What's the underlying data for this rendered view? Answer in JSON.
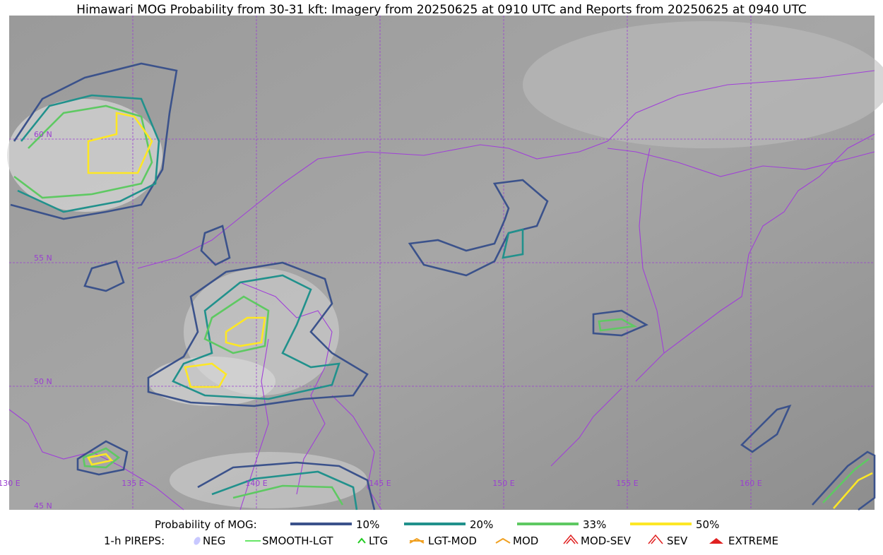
{
  "title": "Himawari MOG Probability from 30-31 kft: Imagery from 20250625 at 0910 UTC and Reports from 20250625 at 0940 UTC",
  "map": {
    "lon_labels": [
      "130 E",
      "135 E",
      "140 E",
      "145 E",
      "150 E",
      "155 E",
      "160 E"
    ],
    "lat_labels": [
      "60 N",
      "55 N",
      "50 N",
      "45 N"
    ]
  },
  "legend": {
    "probability": {
      "title": "Probability of MOG:",
      "items": [
        "10%",
        "20%",
        "33%",
        "50%"
      ]
    },
    "pireps": {
      "title": "1-h PIREPS:",
      "items": [
        "NEG",
        "SMOOTH-LGT",
        "LTG",
        "LGT-MOD",
        "MOD",
        "MOD-SEV",
        "SEV",
        "EXTREME"
      ]
    }
  }
}
